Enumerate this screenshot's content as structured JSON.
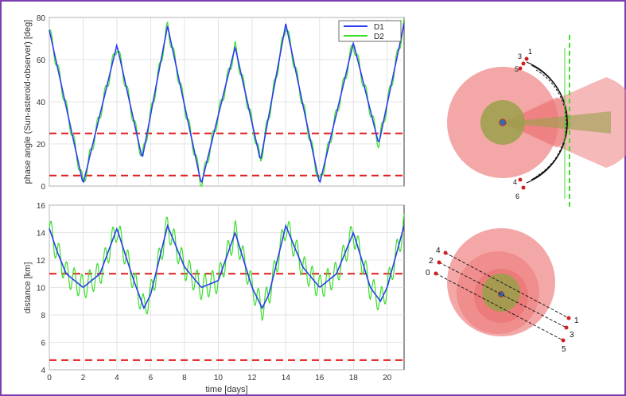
{
  "colors": {
    "frame": "#7b3fb0",
    "d1": "#2b3cf0",
    "d2": "#3adf2a",
    "threshold": "#e01a1a",
    "cone_red": "#f08a8a",
    "core_green": "#9aa04a",
    "marker": "#2a6fb5"
  },
  "chart_data": [
    {
      "type": "line",
      "panel": "top",
      "xlabel": "",
      "ylabel": "phase angle (Sun-asteroid-observer) [deg]",
      "xlim": [
        0,
        21
      ],
      "ylim": [
        0,
        80
      ],
      "yticks": [
        "0",
        "20",
        "40",
        "60",
        "80"
      ],
      "xticks": [
        "0",
        "2",
        "4",
        "6",
        "8",
        "10",
        "12",
        "14",
        "16",
        "18",
        "20"
      ],
      "grid": true,
      "legend": {
        "position": "top-right",
        "entries": [
          "D1",
          "D2"
        ]
      },
      "series": [
        {
          "name": "D1",
          "color": "#2b3cf0",
          "x": [
            0,
            2,
            4,
            5.5,
            7,
            9,
            11,
            12.5,
            14,
            16,
            18,
            19.5,
            21
          ],
          "y": [
            74,
            1,
            67,
            13,
            76,
            1,
            66,
            12,
            77,
            1,
            68,
            20,
            77
          ]
        },
        {
          "name": "D2",
          "color": "#3adf2a",
          "x": [
            0,
            2,
            4,
            5.5,
            7,
            9,
            11,
            12.5,
            14,
            16,
            18,
            19.5,
            21
          ],
          "y": [
            74,
            1,
            67,
            13,
            76,
            1,
            66,
            12,
            77,
            1,
            68,
            20,
            77
          ],
          "ripple_amplitude": 3
        }
      ],
      "hlines": [
        {
          "y": 25,
          "color": "#e01a1a",
          "style": "dashed"
        },
        {
          "y": 5,
          "color": "#e01a1a",
          "style": "dashed"
        }
      ]
    },
    {
      "type": "line",
      "panel": "bottom",
      "xlabel": "time [days]",
      "ylabel": "distance [km]",
      "xlim": [
        0,
        21
      ],
      "ylim": [
        4,
        16
      ],
      "yticks": [
        "4",
        "6",
        "8",
        "10",
        "12",
        "14",
        "16"
      ],
      "xticks": [
        "0",
        "2",
        "4",
        "6",
        "8",
        "10",
        "12",
        "14",
        "16",
        "18",
        "20"
      ],
      "grid": true,
      "series": [
        {
          "name": "D1",
          "color": "#2b3cf0",
          "x": [
            0,
            0.5,
            1,
            2,
            3,
            4,
            5,
            5.6,
            6,
            7,
            8,
            9,
            10,
            11,
            12,
            12.6,
            13,
            14,
            15,
            16,
            17,
            18,
            19,
            19.6,
            20,
            21
          ],
          "y": [
            14.3,
            12.5,
            11,
            10,
            11,
            14.3,
            10.5,
            8.5,
            9.5,
            14.5,
            11.5,
            10,
            10.5,
            14,
            10,
            8.5,
            9.5,
            14.5,
            11.5,
            10,
            11,
            14,
            10,
            9,
            10,
            14.5
          ]
        },
        {
          "name": "D2",
          "color": "#3adf2a",
          "x": [
            0,
            0.5,
            1,
            2,
            3,
            4,
            5,
            5.6,
            6,
            7,
            8,
            9,
            10,
            11,
            12,
            12.6,
            13,
            14,
            15,
            16,
            17,
            18,
            19,
            19.6,
            20,
            21
          ],
          "y": [
            14.3,
            12.5,
            11,
            10,
            11,
            14.3,
            10.5,
            8.5,
            9.5,
            14.5,
            11.5,
            10,
            10.5,
            14,
            10,
            8.5,
            9.5,
            14.5,
            11.5,
            10,
            11,
            14,
            10,
            9,
            10,
            14.5
          ],
          "ripple_amplitude": 0.9
        }
      ],
      "hlines": [
        {
          "y": 11,
          "color": "#e01a1a",
          "style": "dashed"
        },
        {
          "y": 4.7,
          "color": "#e01a1a",
          "style": "dashed"
        }
      ]
    }
  ],
  "diagrams": {
    "top_markers": [
      "1",
      "3",
      "5",
      "4",
      "6"
    ],
    "bottom_markers_left": [
      "4",
      "2",
      "0"
    ],
    "bottom_markers_right": [
      "1",
      "3",
      "5"
    ]
  }
}
